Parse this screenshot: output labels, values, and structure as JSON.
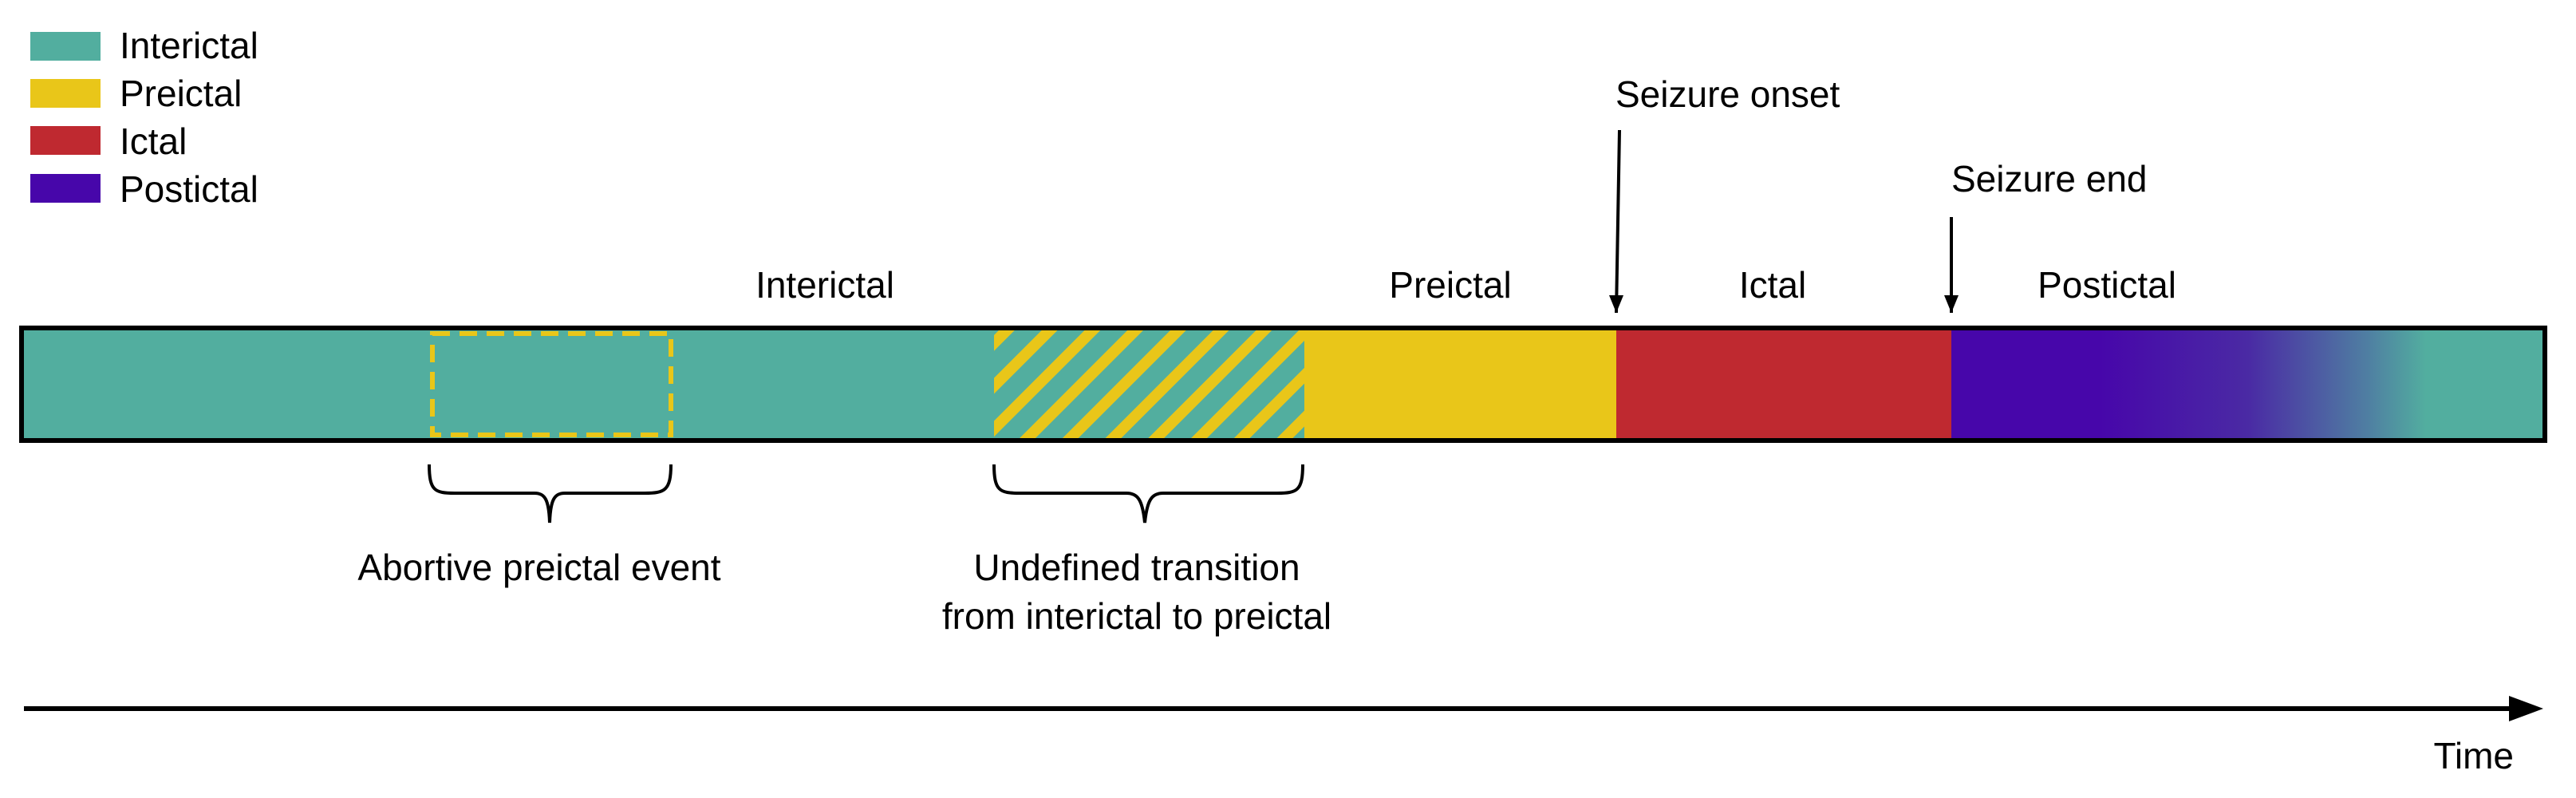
{
  "legend": {
    "items": [
      {
        "label": "Interictal",
        "color": "#52ae9f"
      },
      {
        "label": "Preictal",
        "color": "#e9c619"
      },
      {
        "label": "Ictal",
        "color": "#bf2930"
      },
      {
        "label": "Postictal",
        "color": "#4706aa"
      }
    ]
  },
  "phases": {
    "interictal": "Interictal",
    "preictal": "Preictal",
    "ictal": "Ictal",
    "postictal": "Postictal"
  },
  "markers": {
    "seizure_onset": "Seizure onset",
    "seizure_end": "Seizure end"
  },
  "annotations": {
    "abortive": "Abortive preictal event",
    "transition_line1": "Undefined transition",
    "transition_line2": "from interictal to preictal"
  },
  "axis": {
    "label": "Time"
  },
  "colors": {
    "interictal": "#52ae9f",
    "preictal": "#e9c619",
    "ictal": "#bf2930",
    "postictal": "#4706aa",
    "outline": "#000000"
  }
}
